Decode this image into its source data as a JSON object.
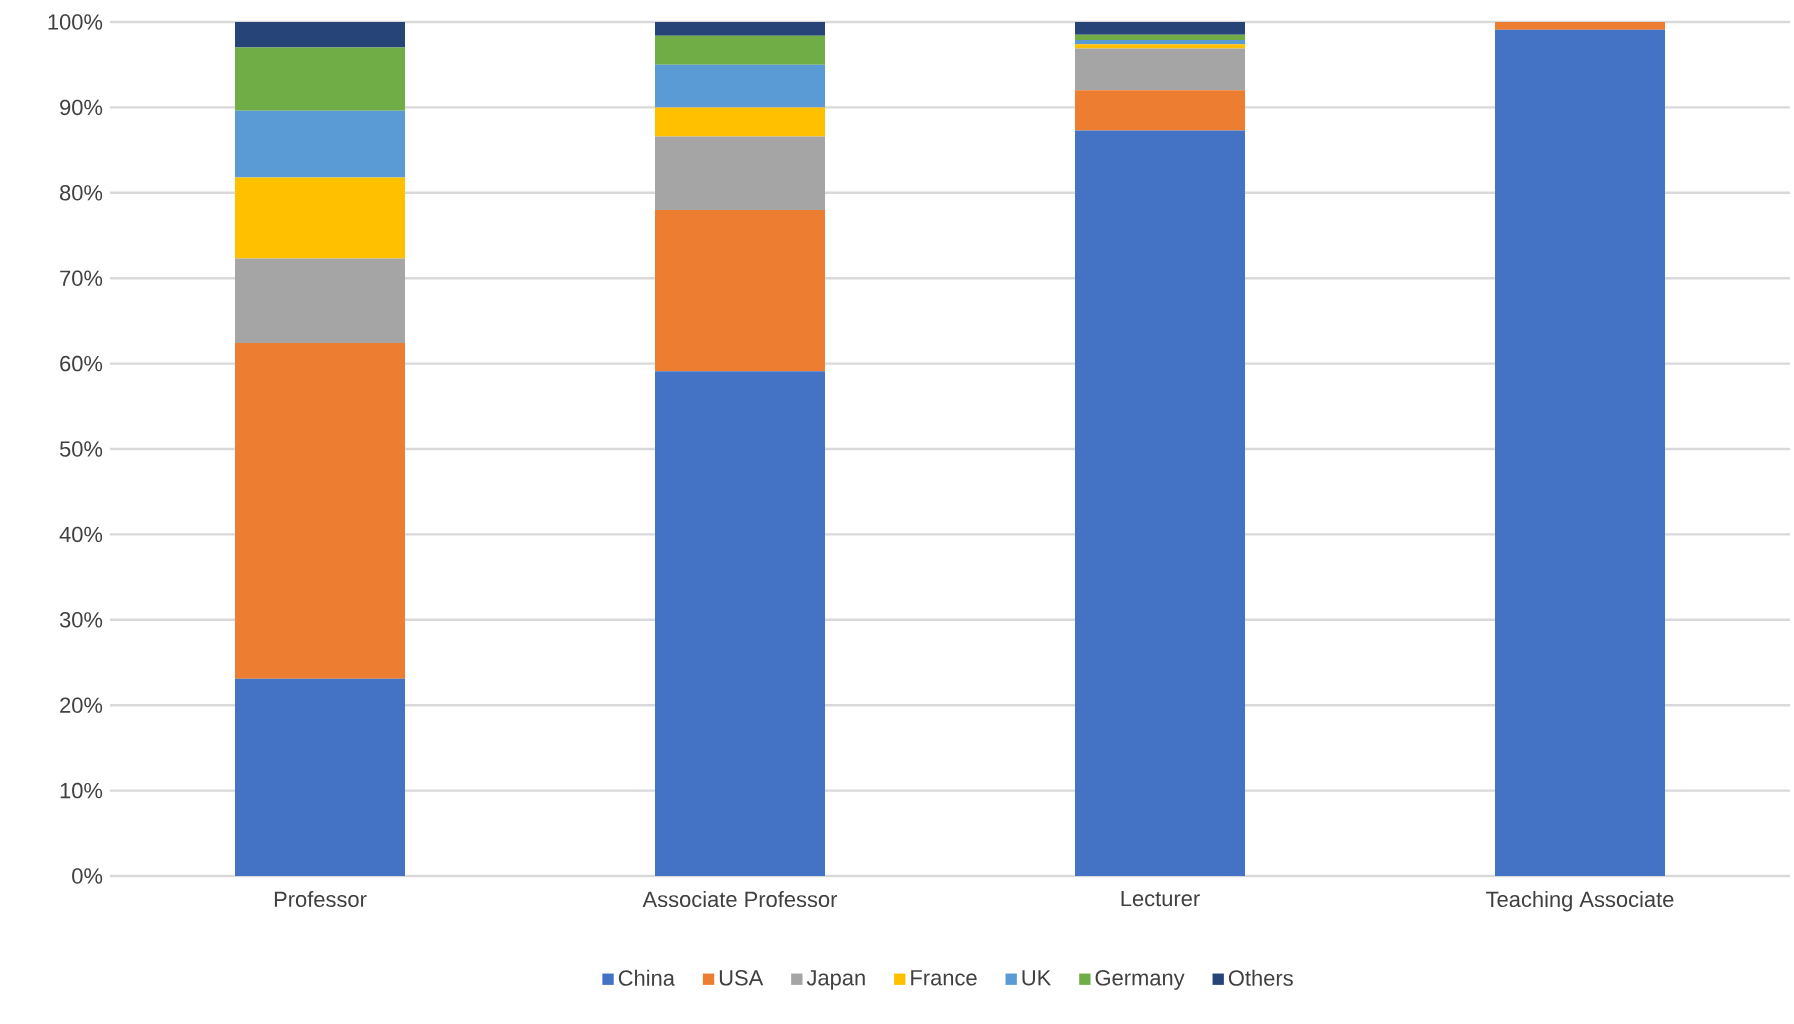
{
  "chart_data": {
    "type": "bar",
    "stacked": true,
    "categories": [
      "Professor",
      "Associate Professor",
      "Lecturer",
      "Teaching Associate"
    ],
    "series": [
      {
        "name": "China",
        "color": "#4472c4",
        "values": [
          23.1,
          59.1,
          87.3,
          99.1
        ]
      },
      {
        "name": "USA",
        "color": "#ed7d31",
        "values": [
          39.3,
          18.9,
          4.7,
          0.9
        ]
      },
      {
        "name": "Japan",
        "color": "#a5a5a5",
        "values": [
          9.9,
          8.6,
          4.9,
          0
        ]
      },
      {
        "name": "France",
        "color": "#ffc000",
        "values": [
          9.5,
          3.4,
          0.5,
          0
        ]
      },
      {
        "name": "UK",
        "color": "#5b9bd5",
        "values": [
          7.8,
          5.0,
          0.5,
          0
        ]
      },
      {
        "name": "Germany",
        "color": "#70ad47",
        "values": [
          7.4,
          3.4,
          0.6,
          0
        ]
      },
      {
        "name": "Others",
        "color": "#264478",
        "values": [
          3.0,
          1.6,
          1.5,
          0
        ]
      }
    ],
    "ylim": [
      0,
      100
    ],
    "yticks": [
      {
        "value": 0,
        "label": "0%"
      },
      {
        "value": 10,
        "label": "10%"
      },
      {
        "value": 20,
        "label": "20%"
      },
      {
        "value": 30,
        "label": "30%"
      },
      {
        "value": 40,
        "label": "40%"
      },
      {
        "value": 50,
        "label": "50%"
      },
      {
        "value": 60,
        "label": "60%"
      },
      {
        "value": 70,
        "label": "70%"
      },
      {
        "value": 80,
        "label": "80%"
      },
      {
        "value": 90,
        "label": "90%"
      },
      {
        "value": 100,
        "label": "100%"
      }
    ],
    "grid": "y",
    "legend": "bottom"
  }
}
